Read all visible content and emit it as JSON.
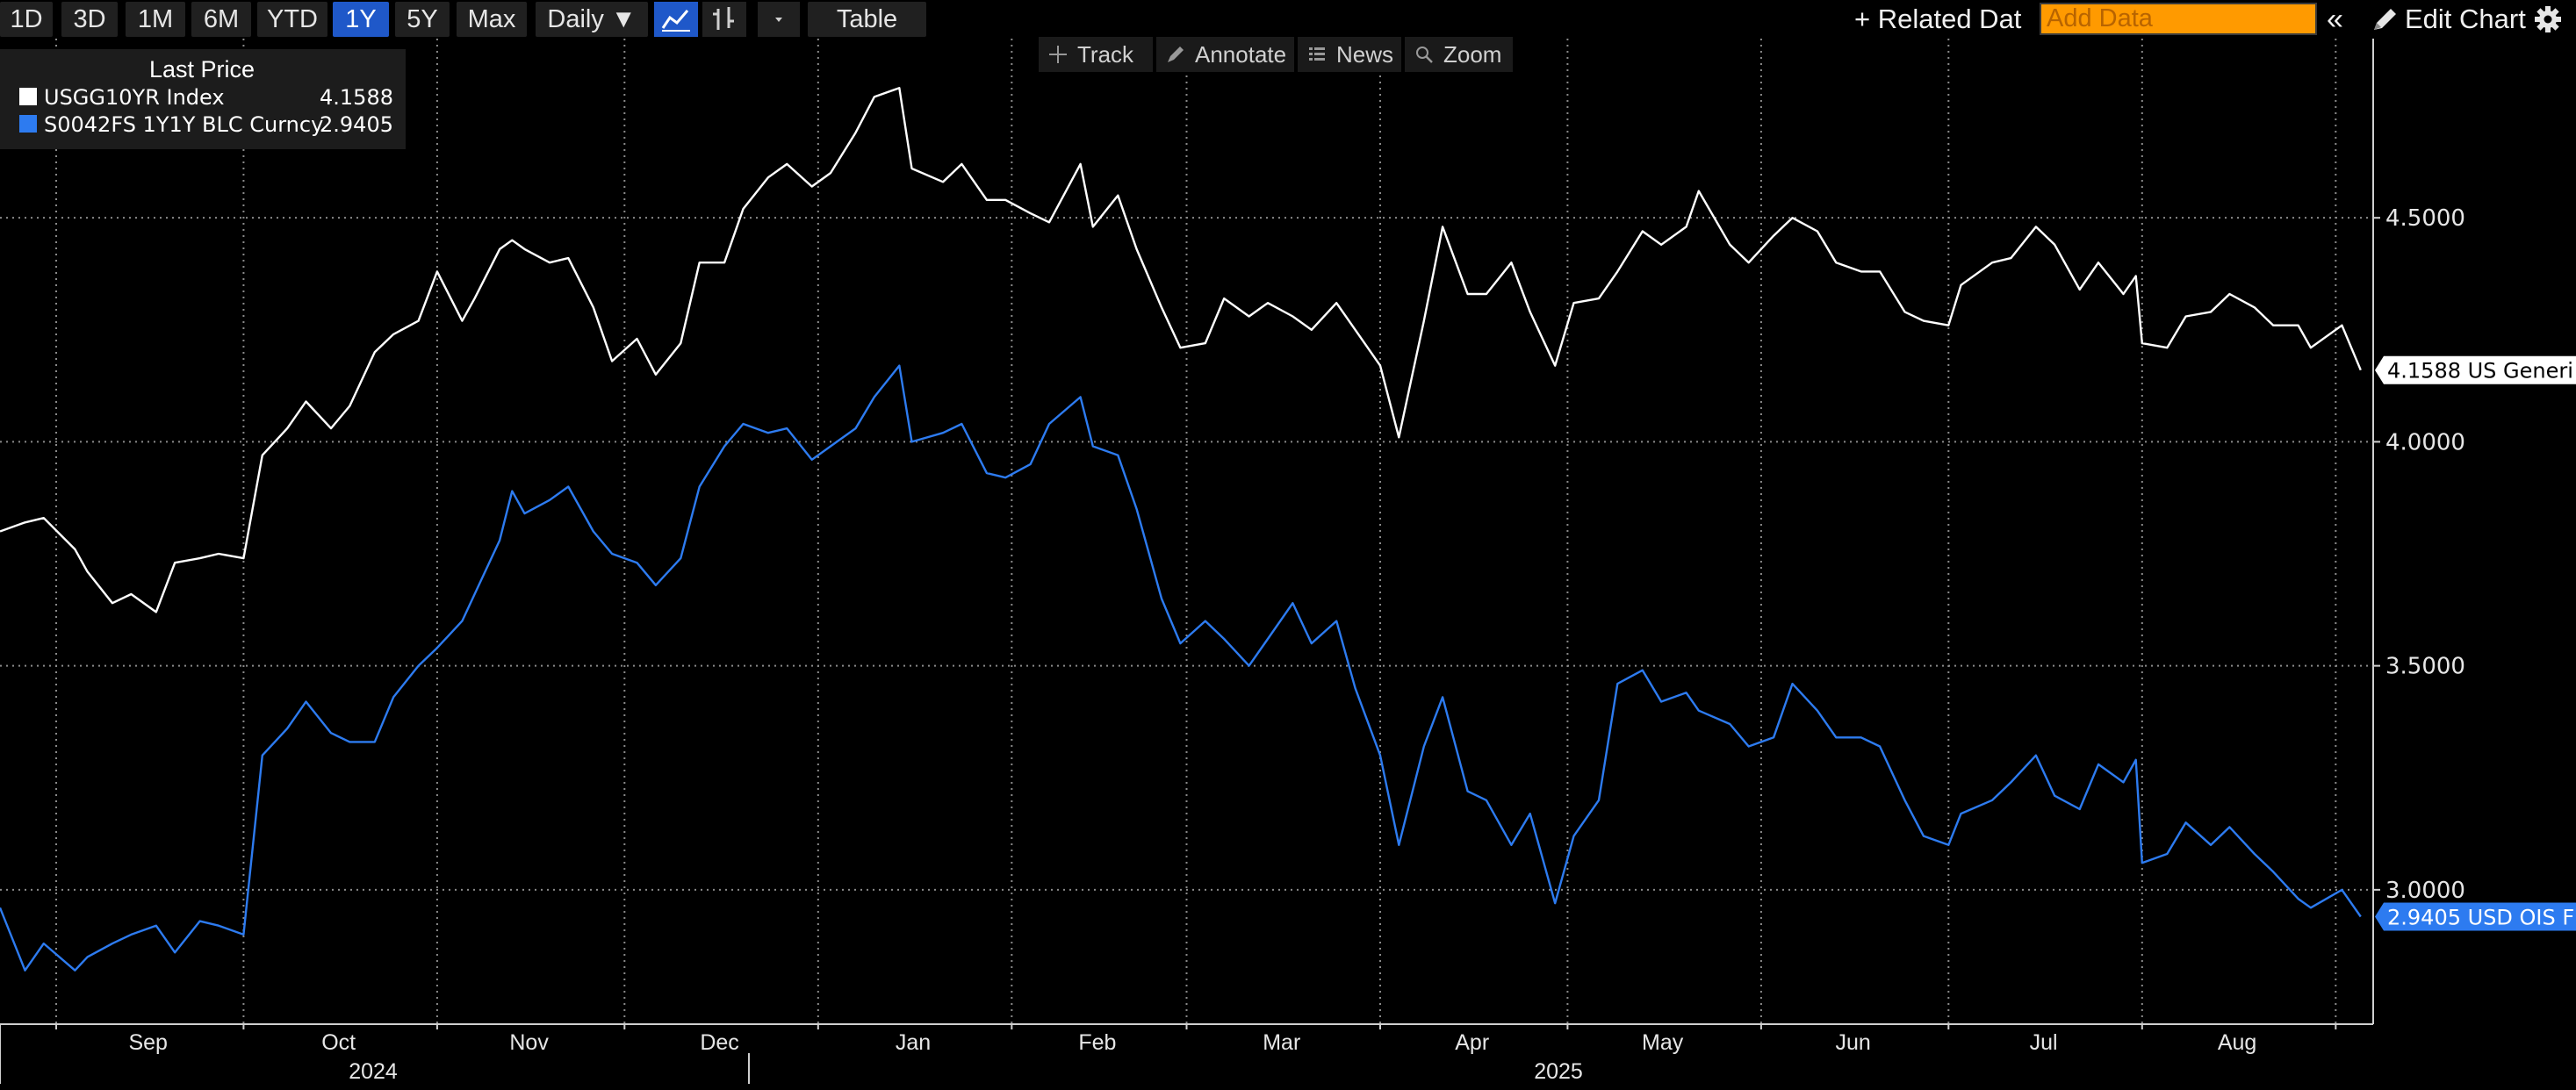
{
  "toolbar": {
    "ranges": [
      "1D",
      "3D",
      "1M",
      "6M",
      "YTD",
      "1Y",
      "5Y",
      "Max"
    ],
    "active_range": "1Y",
    "frequency": "Daily ▼",
    "table_label": "Table",
    "related_data_label": "+ Related Dat",
    "add_data_placeholder": "Add Data",
    "edit_chart_label": "Edit Chart",
    "collapse_glyph": "«"
  },
  "chart_tools": {
    "track": "Track",
    "annotate": "Annotate",
    "news": "News",
    "zoom": "Zoom"
  },
  "legend": {
    "title": "Last Price",
    "items": [
      {
        "name": "USGG10YR Index",
        "value": "4.1588",
        "color": "#ffffff"
      },
      {
        "name": "S0042FS 1Y1Y BLC Curncy",
        "value": "2.9405",
        "color": "#2d7bf0"
      }
    ]
  },
  "chart_data": {
    "type": "line",
    "y_axis": {
      "position": "right",
      "ticks": [
        "4.5000",
        "4.0000",
        "3.5000",
        "3.0000"
      ],
      "tick_values": [
        4.5,
        4.0,
        3.5,
        3.0
      ],
      "range": [
        2.7,
        4.9
      ]
    },
    "x_axis": {
      "months": [
        "Sep",
        "Oct",
        "Nov",
        "Dec",
        "Jan",
        "Feb",
        "Mar",
        "Apr",
        "May",
        "Jun",
        "Jul",
        "Aug"
      ],
      "years": [
        "2024",
        "2025"
      ]
    },
    "grid": true,
    "series": [
      {
        "name": "USGG10YR Index",
        "last_label": "4.1588 US Generi",
        "color": "#ffffff",
        "points": [
          [
            "2024-08-23",
            3.8
          ],
          [
            "2024-08-27",
            3.82
          ],
          [
            "2024-08-30",
            3.83
          ],
          [
            "2024-09-04",
            3.76
          ],
          [
            "2024-09-06",
            3.71
          ],
          [
            "2024-09-10",
            3.64
          ],
          [
            "2024-09-13",
            3.66
          ],
          [
            "2024-09-17",
            3.62
          ],
          [
            "2024-09-20",
            3.73
          ],
          [
            "2024-09-24",
            3.74
          ],
          [
            "2024-09-27",
            3.75
          ],
          [
            "2024-10-01",
            3.74
          ],
          [
            "2024-10-04",
            3.97
          ],
          [
            "2024-10-08",
            4.03
          ],
          [
            "2024-10-11",
            4.09
          ],
          [
            "2024-10-15",
            4.03
          ],
          [
            "2024-10-18",
            4.08
          ],
          [
            "2024-10-22",
            4.2
          ],
          [
            "2024-10-25",
            4.24
          ],
          [
            "2024-10-29",
            4.27
          ],
          [
            "2024-11-01",
            4.38
          ],
          [
            "2024-11-05",
            4.27
          ],
          [
            "2024-11-07",
            4.32
          ],
          [
            "2024-11-11",
            4.43
          ],
          [
            "2024-11-13",
            4.45
          ],
          [
            "2024-11-15",
            4.43
          ],
          [
            "2024-11-19",
            4.4
          ],
          [
            "2024-11-22",
            4.41
          ],
          [
            "2024-11-26",
            4.3
          ],
          [
            "2024-11-29",
            4.18
          ],
          [
            "2024-12-03",
            4.23
          ],
          [
            "2024-12-06",
            4.15
          ],
          [
            "2024-12-10",
            4.22
          ],
          [
            "2024-12-13",
            4.4
          ],
          [
            "2024-12-17",
            4.4
          ],
          [
            "2024-12-20",
            4.52
          ],
          [
            "2024-12-24",
            4.59
          ],
          [
            "2024-12-27",
            4.62
          ],
          [
            "2024-12-31",
            4.57
          ],
          [
            "2025-01-03",
            4.6
          ],
          [
            "2025-01-07",
            4.69
          ],
          [
            "2025-01-10",
            4.77
          ],
          [
            "2025-01-14",
            4.79
          ],
          [
            "2025-01-16",
            4.61
          ],
          [
            "2025-01-21",
            4.58
          ],
          [
            "2025-01-24",
            4.62
          ],
          [
            "2025-01-28",
            4.54
          ],
          [
            "2025-01-31",
            4.54
          ],
          [
            "2025-02-04",
            4.51
          ],
          [
            "2025-02-07",
            4.49
          ],
          [
            "2025-02-12",
            4.62
          ],
          [
            "2025-02-14",
            4.48
          ],
          [
            "2025-02-18",
            4.55
          ],
          [
            "2025-02-21",
            4.43
          ],
          [
            "2025-02-25",
            4.3
          ],
          [
            "2025-02-28",
            4.21
          ],
          [
            "2025-03-04",
            4.22
          ],
          [
            "2025-03-07",
            4.32
          ],
          [
            "2025-03-11",
            4.28
          ],
          [
            "2025-03-14",
            4.31
          ],
          [
            "2025-03-18",
            4.28
          ],
          [
            "2025-03-21",
            4.25
          ],
          [
            "2025-03-25",
            4.31
          ],
          [
            "2025-03-28",
            4.25
          ],
          [
            "2025-04-01",
            4.17
          ],
          [
            "2025-04-04",
            4.01
          ],
          [
            "2025-04-08",
            4.27
          ],
          [
            "2025-04-11",
            4.48
          ],
          [
            "2025-04-15",
            4.33
          ],
          [
            "2025-04-18",
            4.33
          ],
          [
            "2025-04-22",
            4.4
          ],
          [
            "2025-04-25",
            4.29
          ],
          [
            "2025-04-29",
            4.17
          ],
          [
            "2025-05-02",
            4.31
          ],
          [
            "2025-05-06",
            4.32
          ],
          [
            "2025-05-09",
            4.38
          ],
          [
            "2025-05-13",
            4.47
          ],
          [
            "2025-05-16",
            4.44
          ],
          [
            "2025-05-20",
            4.48
          ],
          [
            "2025-05-22",
            4.56
          ],
          [
            "2025-05-27",
            4.44
          ],
          [
            "2025-05-30",
            4.4
          ],
          [
            "2025-06-03",
            4.46
          ],
          [
            "2025-06-06",
            4.5
          ],
          [
            "2025-06-10",
            4.47
          ],
          [
            "2025-06-13",
            4.4
          ],
          [
            "2025-06-17",
            4.38
          ],
          [
            "2025-06-20",
            4.38
          ],
          [
            "2025-06-24",
            4.29
          ],
          [
            "2025-06-27",
            4.27
          ],
          [
            "2025-07-01",
            4.26
          ],
          [
            "2025-07-03",
            4.35
          ],
          [
            "2025-07-08",
            4.4
          ],
          [
            "2025-07-11",
            4.41
          ],
          [
            "2025-07-15",
            4.48
          ],
          [
            "2025-07-18",
            4.44
          ],
          [
            "2025-07-22",
            4.34
          ],
          [
            "2025-07-25",
            4.4
          ],
          [
            "2025-07-29",
            4.33
          ],
          [
            "2025-07-31",
            4.37
          ],
          [
            "2025-08-01",
            4.22
          ],
          [
            "2025-08-05",
            4.21
          ],
          [
            "2025-08-08",
            4.28
          ],
          [
            "2025-08-12",
            4.29
          ],
          [
            "2025-08-15",
            4.33
          ],
          [
            "2025-08-19",
            4.3
          ],
          [
            "2025-08-22",
            4.26
          ],
          [
            "2025-08-26",
            4.26
          ],
          [
            "2025-08-28",
            4.21
          ],
          [
            "2025-09-02",
            4.26
          ],
          [
            "2025-09-05",
            4.16
          ]
        ]
      },
      {
        "name": "S0042FS 1Y1Y BLC Curncy",
        "last_label": "2.9405 USD OIS F",
        "color": "#2d7bf0",
        "points": [
          [
            "2024-08-23",
            2.96
          ],
          [
            "2024-08-27",
            2.82
          ],
          [
            "2024-08-30",
            2.88
          ],
          [
            "2024-09-04",
            2.82
          ],
          [
            "2024-09-06",
            2.85
          ],
          [
            "2024-09-10",
            2.88
          ],
          [
            "2024-09-13",
            2.9
          ],
          [
            "2024-09-17",
            2.92
          ],
          [
            "2024-09-20",
            2.86
          ],
          [
            "2024-09-24",
            2.93
          ],
          [
            "2024-09-27",
            2.92
          ],
          [
            "2024-10-01",
            2.9
          ],
          [
            "2024-10-04",
            3.3
          ],
          [
            "2024-10-08",
            3.36
          ],
          [
            "2024-10-11",
            3.42
          ],
          [
            "2024-10-15",
            3.35
          ],
          [
            "2024-10-18",
            3.33
          ],
          [
            "2024-10-22",
            3.33
          ],
          [
            "2024-10-25",
            3.43
          ],
          [
            "2024-10-29",
            3.5
          ],
          [
            "2024-11-01",
            3.54
          ],
          [
            "2024-11-05",
            3.6
          ],
          [
            "2024-11-07",
            3.66
          ],
          [
            "2024-11-11",
            3.78
          ],
          [
            "2024-11-13",
            3.89
          ],
          [
            "2024-11-15",
            3.84
          ],
          [
            "2024-11-19",
            3.87
          ],
          [
            "2024-11-22",
            3.9
          ],
          [
            "2024-11-26",
            3.8
          ],
          [
            "2024-11-29",
            3.75
          ],
          [
            "2024-12-03",
            3.73
          ],
          [
            "2024-12-06",
            3.68
          ],
          [
            "2024-12-10",
            3.74
          ],
          [
            "2024-12-13",
            3.9
          ],
          [
            "2024-12-17",
            3.99
          ],
          [
            "2024-12-20",
            4.04
          ],
          [
            "2024-12-24",
            4.02
          ],
          [
            "2024-12-27",
            4.03
          ],
          [
            "2024-12-31",
            3.96
          ],
          [
            "2025-01-03",
            3.99
          ],
          [
            "2025-01-07",
            4.03
          ],
          [
            "2025-01-10",
            4.1
          ],
          [
            "2025-01-14",
            4.17
          ],
          [
            "2025-01-16",
            4.0
          ],
          [
            "2025-01-21",
            4.02
          ],
          [
            "2025-01-24",
            4.04
          ],
          [
            "2025-01-28",
            3.93
          ],
          [
            "2025-01-31",
            3.92
          ],
          [
            "2025-02-04",
            3.95
          ],
          [
            "2025-02-07",
            4.04
          ],
          [
            "2025-02-12",
            4.1
          ],
          [
            "2025-02-14",
            3.99
          ],
          [
            "2025-02-18",
            3.97
          ],
          [
            "2025-02-21",
            3.85
          ],
          [
            "2025-02-25",
            3.65
          ],
          [
            "2025-02-28",
            3.55
          ],
          [
            "2025-03-04",
            3.6
          ],
          [
            "2025-03-07",
            3.56
          ],
          [
            "2025-03-11",
            3.5
          ],
          [
            "2025-03-14",
            3.56
          ],
          [
            "2025-03-18",
            3.64
          ],
          [
            "2025-03-21",
            3.55
          ],
          [
            "2025-03-25",
            3.6
          ],
          [
            "2025-03-28",
            3.45
          ],
          [
            "2025-04-01",
            3.3
          ],
          [
            "2025-04-04",
            3.1
          ],
          [
            "2025-04-08",
            3.32
          ],
          [
            "2025-04-11",
            3.43
          ],
          [
            "2025-04-15",
            3.22
          ],
          [
            "2025-04-18",
            3.2
          ],
          [
            "2025-04-22",
            3.1
          ],
          [
            "2025-04-25",
            3.17
          ],
          [
            "2025-04-29",
            2.97
          ],
          [
            "2025-05-02",
            3.12
          ],
          [
            "2025-05-06",
            3.2
          ],
          [
            "2025-05-09",
            3.46
          ],
          [
            "2025-05-13",
            3.49
          ],
          [
            "2025-05-16",
            3.42
          ],
          [
            "2025-05-20",
            3.44
          ],
          [
            "2025-05-22",
            3.4
          ],
          [
            "2025-05-27",
            3.37
          ],
          [
            "2025-05-30",
            3.32
          ],
          [
            "2025-06-03",
            3.34
          ],
          [
            "2025-06-06",
            3.46
          ],
          [
            "2025-06-10",
            3.4
          ],
          [
            "2025-06-13",
            3.34
          ],
          [
            "2025-06-17",
            3.34
          ],
          [
            "2025-06-20",
            3.32
          ],
          [
            "2025-06-24",
            3.2
          ],
          [
            "2025-06-27",
            3.12
          ],
          [
            "2025-07-01",
            3.1
          ],
          [
            "2025-07-03",
            3.17
          ],
          [
            "2025-07-08",
            3.2
          ],
          [
            "2025-07-11",
            3.24
          ],
          [
            "2025-07-15",
            3.3
          ],
          [
            "2025-07-18",
            3.21
          ],
          [
            "2025-07-22",
            3.18
          ],
          [
            "2025-07-25",
            3.28
          ],
          [
            "2025-07-29",
            3.24
          ],
          [
            "2025-07-31",
            3.29
          ],
          [
            "2025-08-01",
            3.06
          ],
          [
            "2025-08-05",
            3.08
          ],
          [
            "2025-08-08",
            3.15
          ],
          [
            "2025-08-12",
            3.1
          ],
          [
            "2025-08-15",
            3.14
          ],
          [
            "2025-08-19",
            3.08
          ],
          [
            "2025-08-22",
            3.04
          ],
          [
            "2025-08-26",
            2.98
          ],
          [
            "2025-08-28",
            2.96
          ],
          [
            "2025-09-02",
            3.0
          ],
          [
            "2025-09-05",
            2.94
          ]
        ]
      }
    ]
  }
}
